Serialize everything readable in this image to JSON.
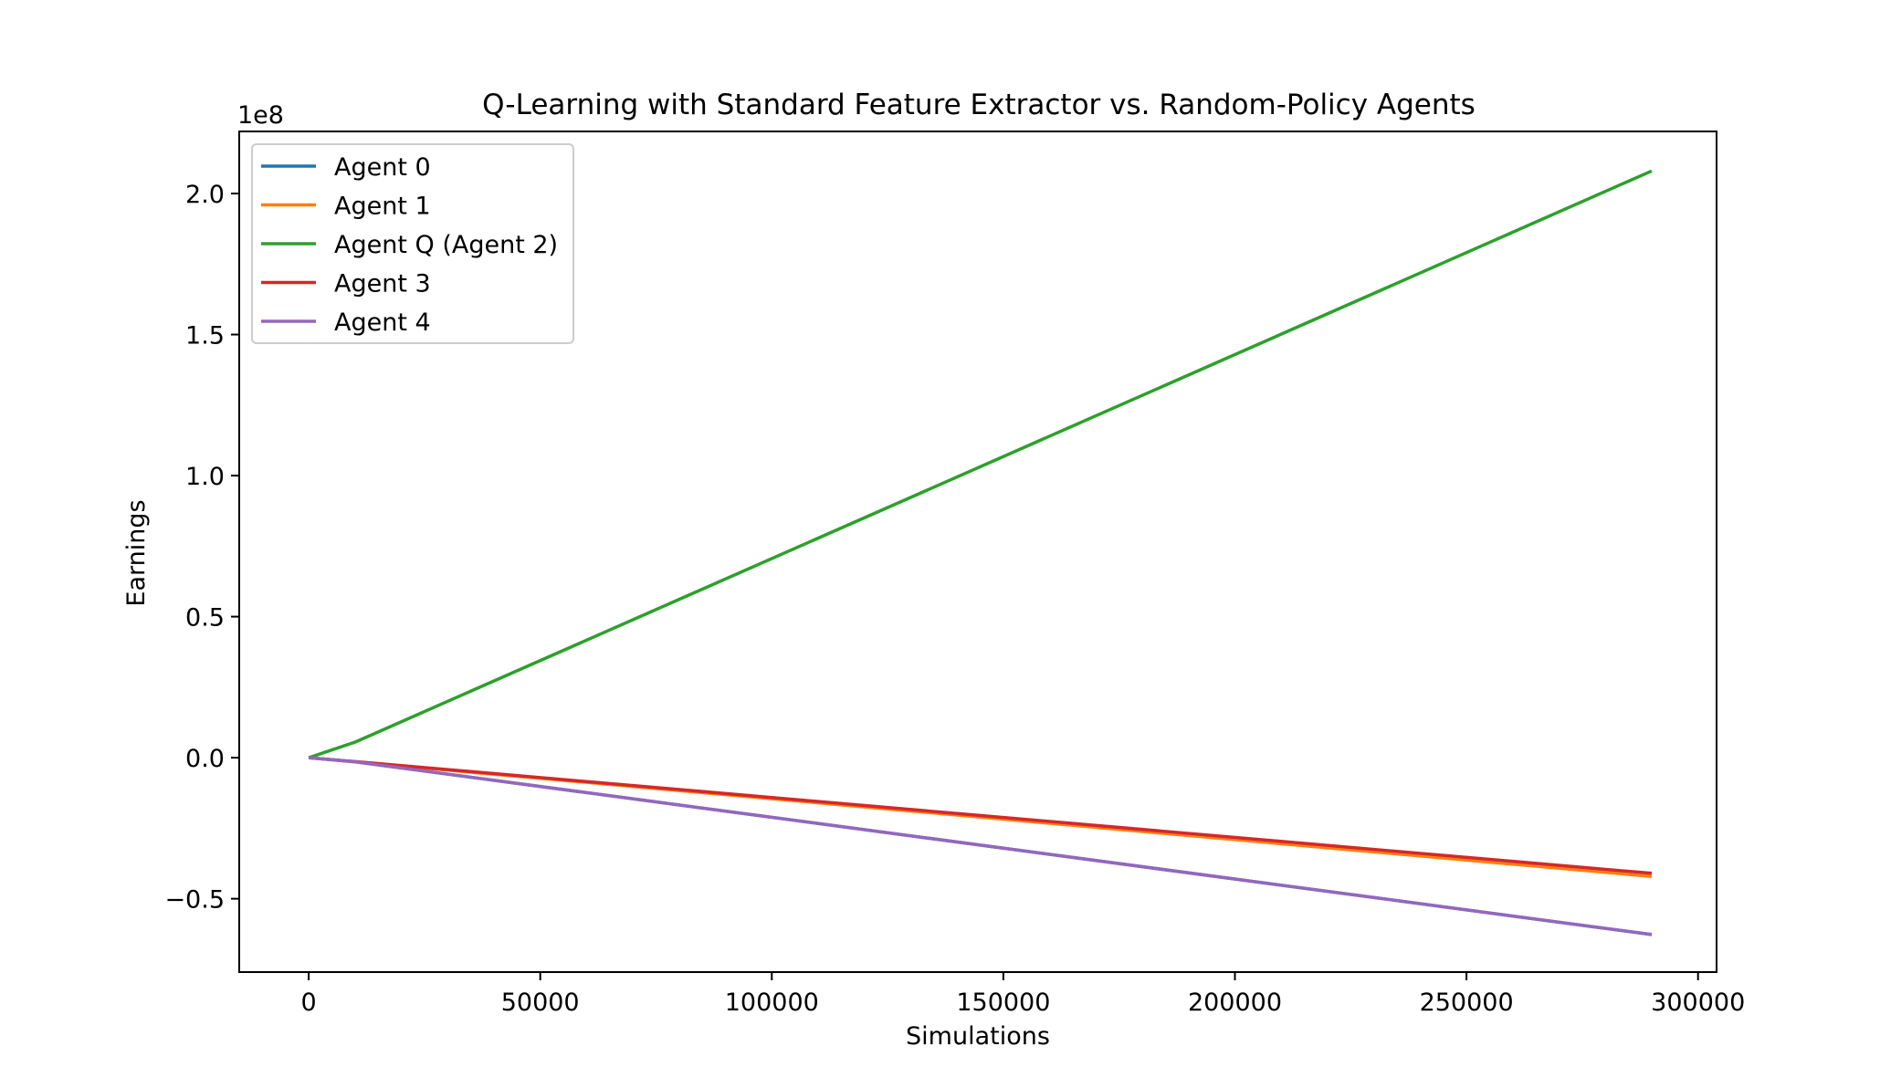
{
  "chart_data": {
    "type": "line",
    "title": "Q-Learning with Standard Feature Extractor vs. Random-Policy Agents",
    "xlabel": "Simulations",
    "ylabel": "Earnings",
    "y_offset_label": "1e8",
    "y_scale_factor": 100000000,
    "xlim": [
      -15000,
      304000
    ],
    "ylim": [
      -76000000,
      222000000
    ],
    "x_ticks": [
      0,
      50000,
      100000,
      150000,
      200000,
      250000,
      300000
    ],
    "x_tick_labels": [
      "0",
      "50000",
      "100000",
      "150000",
      "200000",
      "250000",
      "300000"
    ],
    "y_ticks": [
      -50000000,
      0,
      50000000,
      100000000,
      150000000,
      200000000
    ],
    "y_tick_labels": [
      "−0.5",
      "0.0",
      "0.5",
      "1.0",
      "1.5",
      "2.0"
    ],
    "grid": false,
    "legend_position": "top-left",
    "x": [
      0,
      10000,
      290000
    ],
    "series": [
      {
        "name": "Agent 0",
        "color": "#1f77b4",
        "values": [
          0,
          -1450000,
          -62700000
        ]
      },
      {
        "name": "Agent 1",
        "color": "#ff7f0e",
        "values": [
          0,
          -1500000,
          -42100000
        ]
      },
      {
        "name": "Agent Q (Agent 2)",
        "color": "#2ca02c",
        "values": [
          0,
          5500000,
          208000000
        ]
      },
      {
        "name": "Agent 3",
        "color": "#d62728",
        "values": [
          0,
          -1400000,
          -41000000
        ]
      },
      {
        "name": "Agent 4",
        "color": "#9467bd",
        "values": [
          0,
          -1450000,
          -62700000
        ]
      }
    ]
  }
}
